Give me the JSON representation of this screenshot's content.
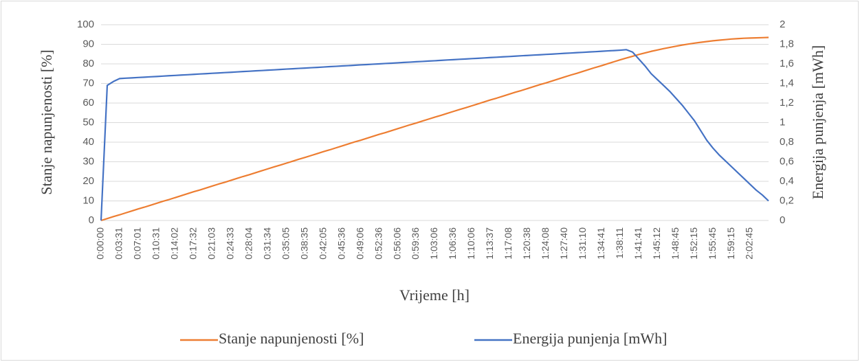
{
  "chart_data": {
    "type": "line",
    "x_label": "Vrijeme [h]",
    "y_label": "Stanje napunjenosti [%]",
    "y2_label": "Energija punjenja [mWh]",
    "categories": [
      "0:00:00",
      null,
      null,
      "0:03:31",
      null,
      null,
      "0:07:01",
      null,
      null,
      "0:10:31",
      null,
      null,
      "0:14:02",
      null,
      null,
      "0:17:32",
      null,
      null,
      "0:21:03",
      null,
      null,
      "0:24:33",
      null,
      null,
      "0:28:04",
      null,
      null,
      "0:31:34",
      null,
      null,
      "0:35:05",
      null,
      null,
      "0:38:35",
      null,
      null,
      "0:42:05",
      null,
      null,
      "0:45:36",
      null,
      null,
      "0:49:06",
      null,
      null,
      "0:52:36",
      null,
      null,
      "0:56:06",
      null,
      null,
      "0:59:36",
      null,
      null,
      "1:03:06",
      null,
      null,
      "1:06:36",
      null,
      null,
      "1:10:06",
      null,
      null,
      "1:13:37",
      null,
      null,
      "1:17:08",
      null,
      null,
      "1:20:38",
      null,
      null,
      "1:24:08",
      null,
      null,
      "1:27:40",
      null,
      null,
      "1:31:10",
      null,
      null,
      "1:34:41",
      null,
      null,
      "1:38:11",
      null,
      null,
      "1:41:41",
      null,
      null,
      "1:45:12",
      null,
      null,
      "1:48:45",
      null,
      null,
      "1:52:15",
      null,
      null,
      "1:55:45",
      null,
      null,
      "1:59:15",
      null,
      null,
      "2:02:45",
      null,
      null,
      null
    ],
    "series": [
      {
        "name": "Stanje napunjenosti [%]",
        "color": "#ed7d31",
        "axis": "y",
        "values": [
          0,
          1,
          2,
          2.9,
          3.9,
          4.9,
          5.9,
          6.8,
          7.8,
          8.8,
          9.8,
          10.7,
          11.7,
          12.7,
          13.7,
          14.7,
          15.6,
          16.6,
          17.6,
          18.6,
          19.5,
          20.5,
          21.5,
          22.5,
          23.4,
          24.4,
          25.4,
          26.4,
          27.4,
          28.3,
          29.3,
          30.3,
          31.3,
          32.2,
          33.2,
          34.2,
          35.2,
          36.1,
          37.1,
          38.1,
          39.1,
          40.1,
          41,
          42,
          43,
          44,
          44.9,
          45.9,
          46.9,
          47.9,
          48.9,
          49.8,
          50.8,
          51.8,
          52.8,
          53.7,
          54.7,
          55.7,
          56.7,
          57.6,
          58.6,
          59.6,
          60.6,
          61.6,
          62.5,
          63.5,
          64.5,
          65.5,
          66.4,
          67.4,
          68.4,
          69.4,
          70.3,
          71.3,
          72.3,
          73.3,
          74.3,
          75.2,
          76.2,
          77.2,
          78.2,
          79.1,
          80.1,
          81.1,
          82.1,
          83,
          83.9,
          84.8,
          85.6,
          86.4,
          87.1,
          87.8,
          88.4,
          89,
          89.6,
          90.1,
          90.6,
          91,
          91.4,
          91.8,
          92.1,
          92.4,
          92.7,
          92.9,
          93.1,
          93.2,
          93.3,
          93.4,
          93.5
        ]
      },
      {
        "name": "Energija punjenja [mWh]",
        "color": "#4472c4",
        "axis": "y2",
        "values": [
          0,
          1.38,
          1.42,
          1.45,
          1.454,
          1.457,
          1.461,
          1.464,
          1.468,
          1.471,
          1.475,
          1.479,
          1.482,
          1.486,
          1.489,
          1.493,
          1.497,
          1.5,
          1.504,
          1.507,
          1.511,
          1.514,
          1.518,
          1.522,
          1.525,
          1.529,
          1.532,
          1.536,
          1.539,
          1.543,
          1.547,
          1.55,
          1.554,
          1.557,
          1.561,
          1.564,
          1.568,
          1.572,
          1.575,
          1.579,
          1.582,
          1.586,
          1.59,
          1.593,
          1.597,
          1.6,
          1.604,
          1.607,
          1.611,
          1.615,
          1.618,
          1.622,
          1.625,
          1.629,
          1.632,
          1.636,
          1.64,
          1.643,
          1.647,
          1.65,
          1.654,
          1.657,
          1.661,
          1.665,
          1.668,
          1.672,
          1.675,
          1.679,
          1.683,
          1.686,
          1.69,
          1.693,
          1.697,
          1.7,
          1.704,
          1.708,
          1.711,
          1.715,
          1.718,
          1.722,
          1.725,
          1.729,
          1.733,
          1.736,
          1.74,
          1.745,
          1.72,
          1.65,
          1.58,
          1.5,
          1.44,
          1.38,
          1.32,
          1.25,
          1.18,
          1.1,
          1.02,
          0.92,
          0.82,
          0.74,
          0.67,
          0.61,
          0.55,
          0.49,
          0.43,
          0.37,
          0.31,
          0.26,
          0.2
        ]
      }
    ],
    "ylim": [
      0,
      100
    ],
    "yticks": [
      0,
      10,
      20,
      30,
      40,
      50,
      60,
      70,
      80,
      90,
      100
    ],
    "y2lim": [
      0,
      2
    ],
    "y2ticks": [
      0,
      {
        "value": 0.2,
        "label": "0,2"
      },
      {
        "value": 0.4,
        "label": "0,4"
      },
      {
        "value": 0.6,
        "label": "0,6"
      },
      {
        "value": 0.8,
        "label": "0,8"
      },
      1,
      {
        "value": 1.2,
        "label": "1,2"
      },
      {
        "value": 1.4,
        "label": "1,4"
      },
      {
        "value": 1.6,
        "label": "1,6"
      },
      {
        "value": 1.8,
        "label": "1,8"
      },
      2
    ],
    "grid": true,
    "legend": "bottom"
  }
}
